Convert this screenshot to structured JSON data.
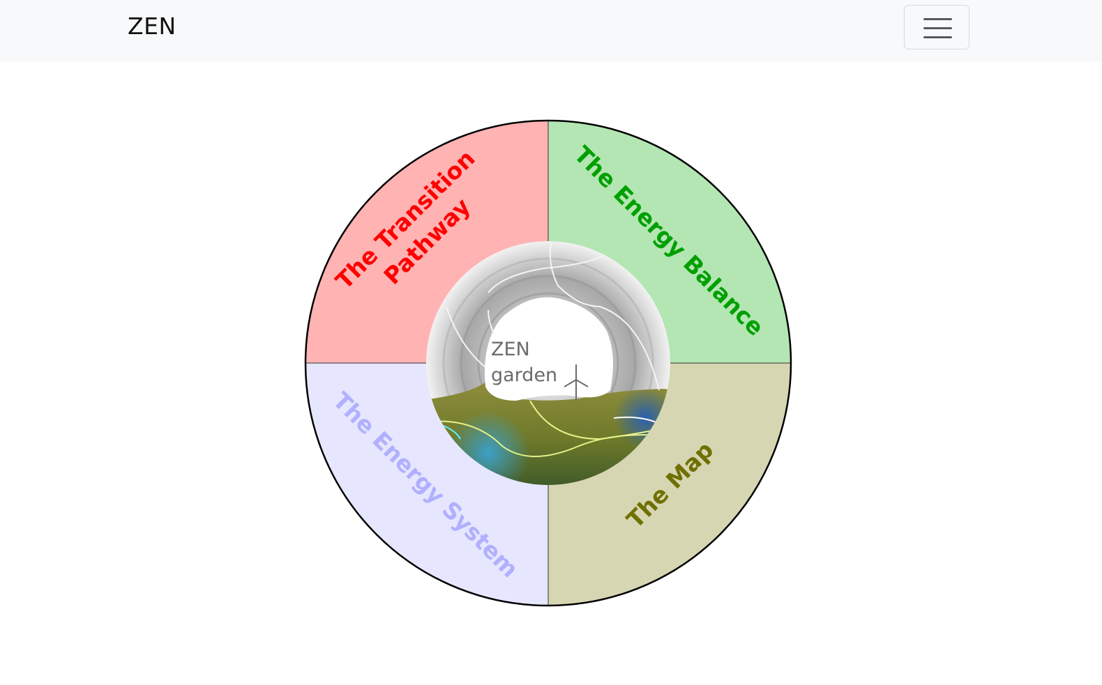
{
  "navbar": {
    "brand": "ZEN",
    "menu_icon": "hamburger-menu-icon"
  },
  "wheel": {
    "segments": [
      {
        "id": "transition-pathway",
        "line1": "The Transition",
        "line2": "Pathway",
        "fill": "#ffb3b3",
        "text_color": "#ff0000"
      },
      {
        "id": "energy-balance",
        "line1": "The Energy Balance",
        "fill": "#b3e6b3",
        "text_color": "#00a000"
      },
      {
        "id": "energy-system",
        "line1": "The Energy System",
        "fill": "#e6e6ff",
        "text_color": "#b0b0ff"
      },
      {
        "id": "map",
        "line1": "The Map",
        "fill": "#d6d6b3",
        "text_color": "#707000"
      }
    ],
    "center": {
      "line1": "ZEN",
      "line2": "garden",
      "icon": "wind-turbine-icon"
    }
  }
}
